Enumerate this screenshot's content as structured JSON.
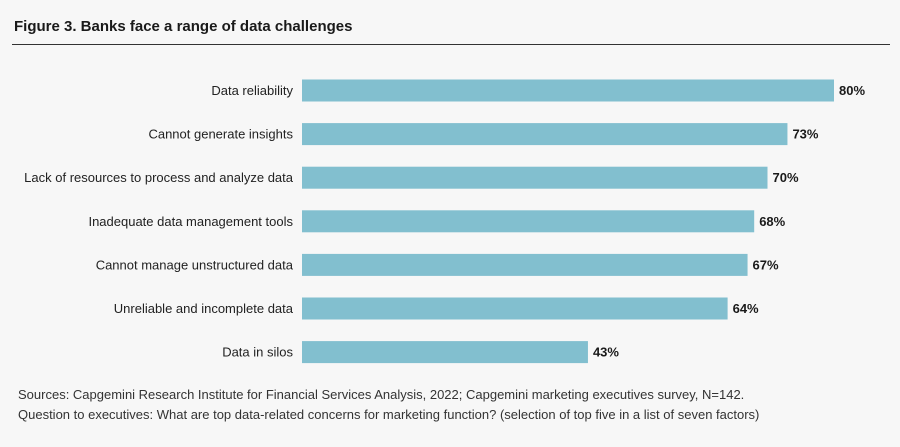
{
  "figure": {
    "title": "Figure 3. Banks face a range of data challenges"
  },
  "chart_data": {
    "type": "bar",
    "orientation": "horizontal",
    "title": "",
    "xlabel": "",
    "ylabel": "",
    "xlim": [
      0,
      80
    ],
    "grid": false,
    "legend": "none",
    "value_suffix": "%",
    "bar_color": "#82bfcf",
    "categories": [
      "Data reliability",
      "Cannot generate insights",
      "Lack of resources to process and analyze data",
      "Inadequate data management tools",
      "Cannot manage unstructured data",
      "Unreliable and incomplete data",
      "Data in silos"
    ],
    "values": [
      80,
      73,
      70,
      68,
      67,
      64,
      43
    ],
    "data_labels": [
      "80%",
      "73%",
      "70%",
      "68%",
      "67%",
      "64%",
      "43%"
    ]
  },
  "footnotes": {
    "sources": "Sources: Capgemini Research Institute for Financial Services Analysis, 2022; Capgemini marketing executives survey, N=142.",
    "question": "Question to executives: What are top data-related concerns for marketing function? (selection of top five in a list of seven factors)"
  }
}
